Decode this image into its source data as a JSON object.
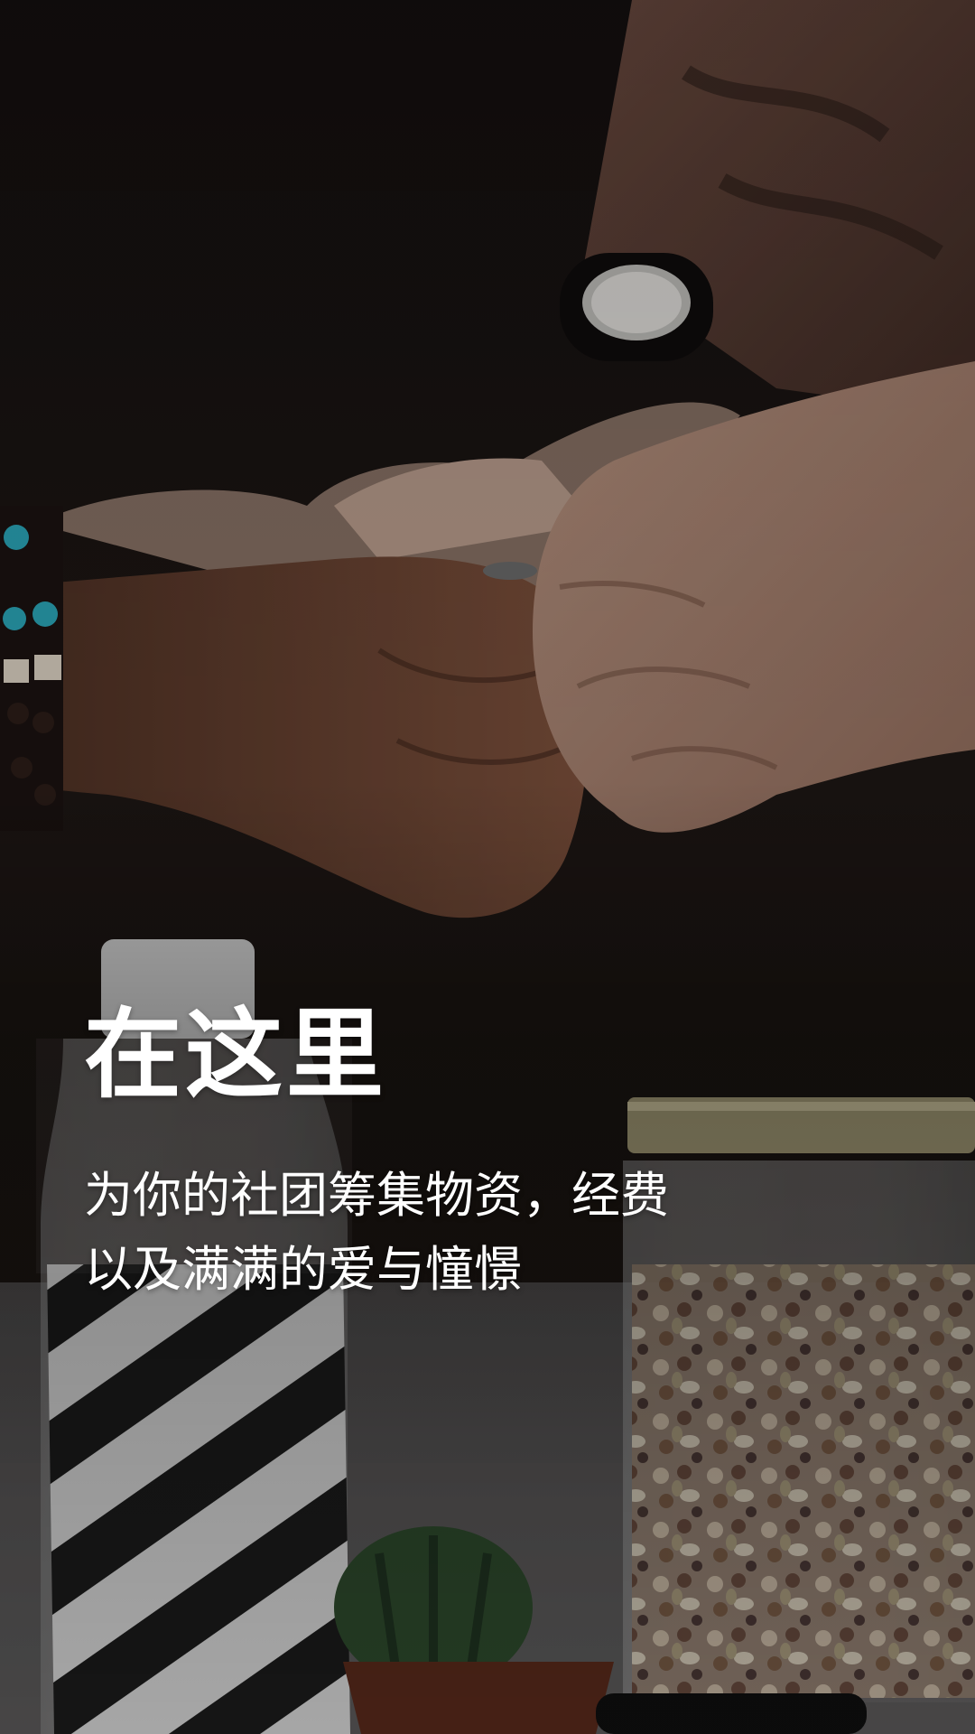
{
  "hero": {
    "title": "在这里",
    "subtitle_line1": "为你的社团筹集物资，经费",
    "subtitle_line2": "以及满满的爱与憧憬"
  },
  "background": {
    "scene": "fist-bump-photo",
    "tint": "#1a1513"
  }
}
